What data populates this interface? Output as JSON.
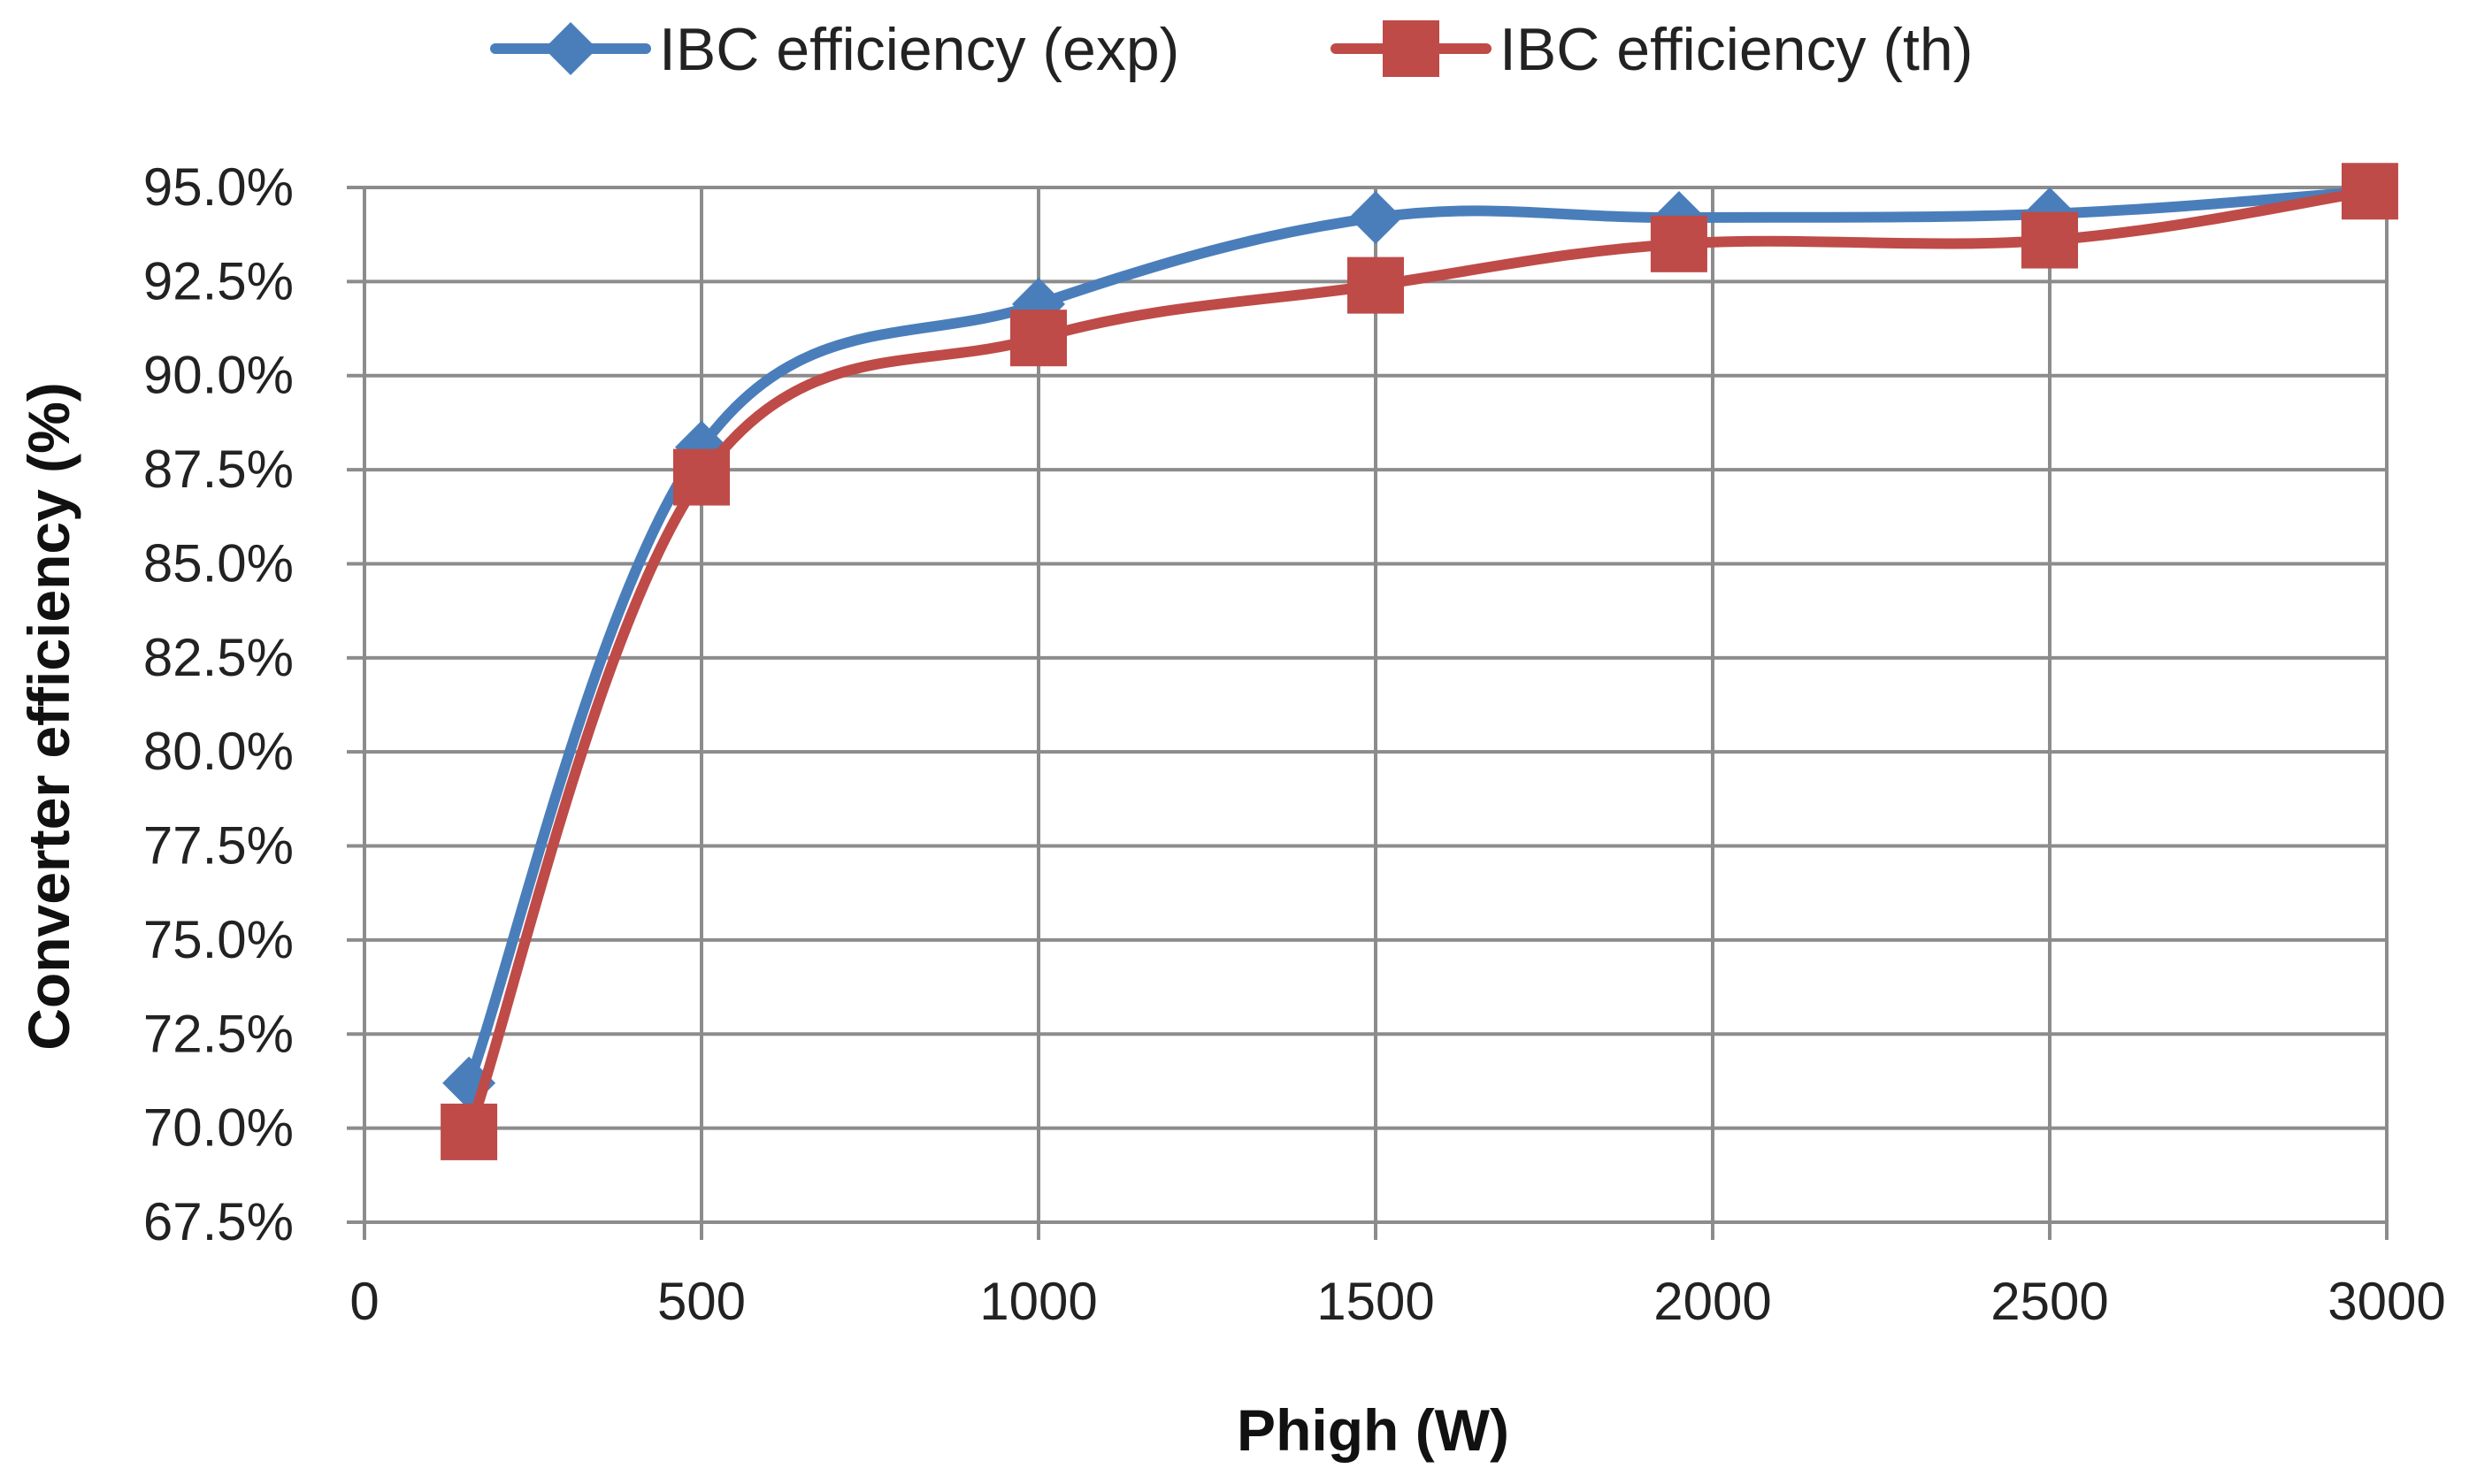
{
  "chart_data": {
    "type": "line",
    "title": "",
    "xlabel": "Phigh (W)",
    "ylabel": "Converter efficiency (%)",
    "xlim": [
      0,
      3000
    ],
    "ylim": [
      67.5,
      95.0
    ],
    "x_ticks": [
      0,
      500,
      1000,
      1500,
      2000,
      2500,
      3000
    ],
    "x_tick_labels": [
      "0",
      "500",
      "1000",
      "1500",
      "2000",
      "2500",
      "3000"
    ],
    "y_ticks": [
      67.5,
      70.0,
      72.5,
      75.0,
      77.5,
      80.0,
      82.5,
      85.0,
      87.5,
      90.0,
      92.5,
      95.0
    ],
    "y_tick_labels": [
      "67.5%",
      "70.0%",
      "72.5%",
      "75.0%",
      "77.5%",
      "80.0%",
      "82.5%",
      "85.0%",
      "87.5%",
      "90.0%",
      "92.5%",
      "95.0%"
    ],
    "grid": true,
    "legend_position": "top-center",
    "series": [
      {
        "name": "IBC efficiency (exp)",
        "marker": "diamond",
        "color": "#4a7ebb",
        "x": [
          155,
          500,
          1000,
          1500,
          1950,
          2500,
          2975
        ],
        "y": [
          71.2,
          88.1,
          91.9,
          94.2,
          94.2,
          94.3,
          94.9
        ]
      },
      {
        "name": "IBC efficiency (th)",
        "marker": "square",
        "color": "#be4b48",
        "x": [
          155,
          500,
          1000,
          1500,
          1950,
          2500,
          2975
        ],
        "y": [
          69.9,
          87.3,
          91.0,
          92.4,
          93.5,
          93.6,
          94.9
        ]
      }
    ]
  }
}
